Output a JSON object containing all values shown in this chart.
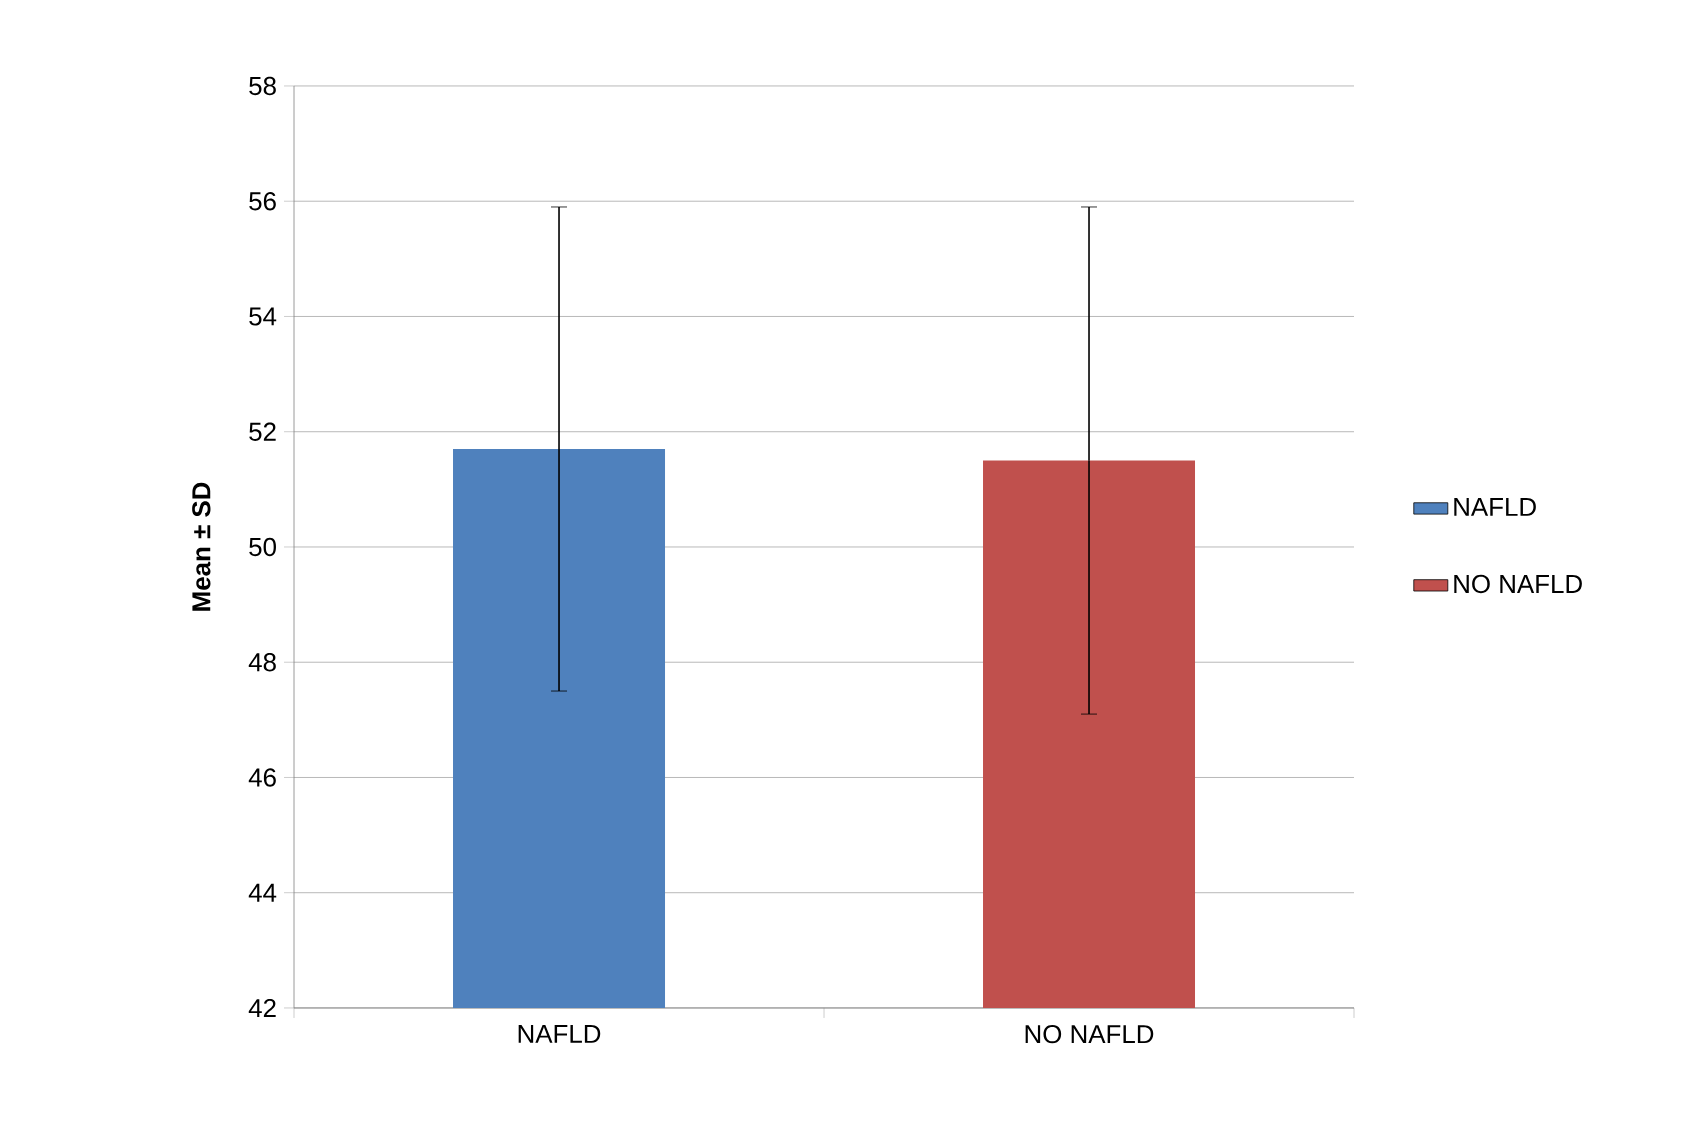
{
  "chart_data": {
    "type": "bar",
    "ylabel": "Mean ± SD",
    "categories": [
      "NAFLD",
      "NO NAFLD"
    ],
    "series": [
      {
        "name": "NAFLD",
        "color": "#4f81bd",
        "values": [
          51.7,
          null
        ],
        "errors": [
          4.2,
          null
        ]
      },
      {
        "name": "NO NAFLD",
        "color": "#c0504d",
        "values": [
          null,
          51.5
        ],
        "errors": [
          null,
          4.4
        ]
      }
    ],
    "ylim": [
      42,
      58
    ],
    "yticks": [
      42,
      44,
      46,
      48,
      50,
      52,
      54,
      56,
      58
    ],
    "grid": "y",
    "legend": "right"
  }
}
